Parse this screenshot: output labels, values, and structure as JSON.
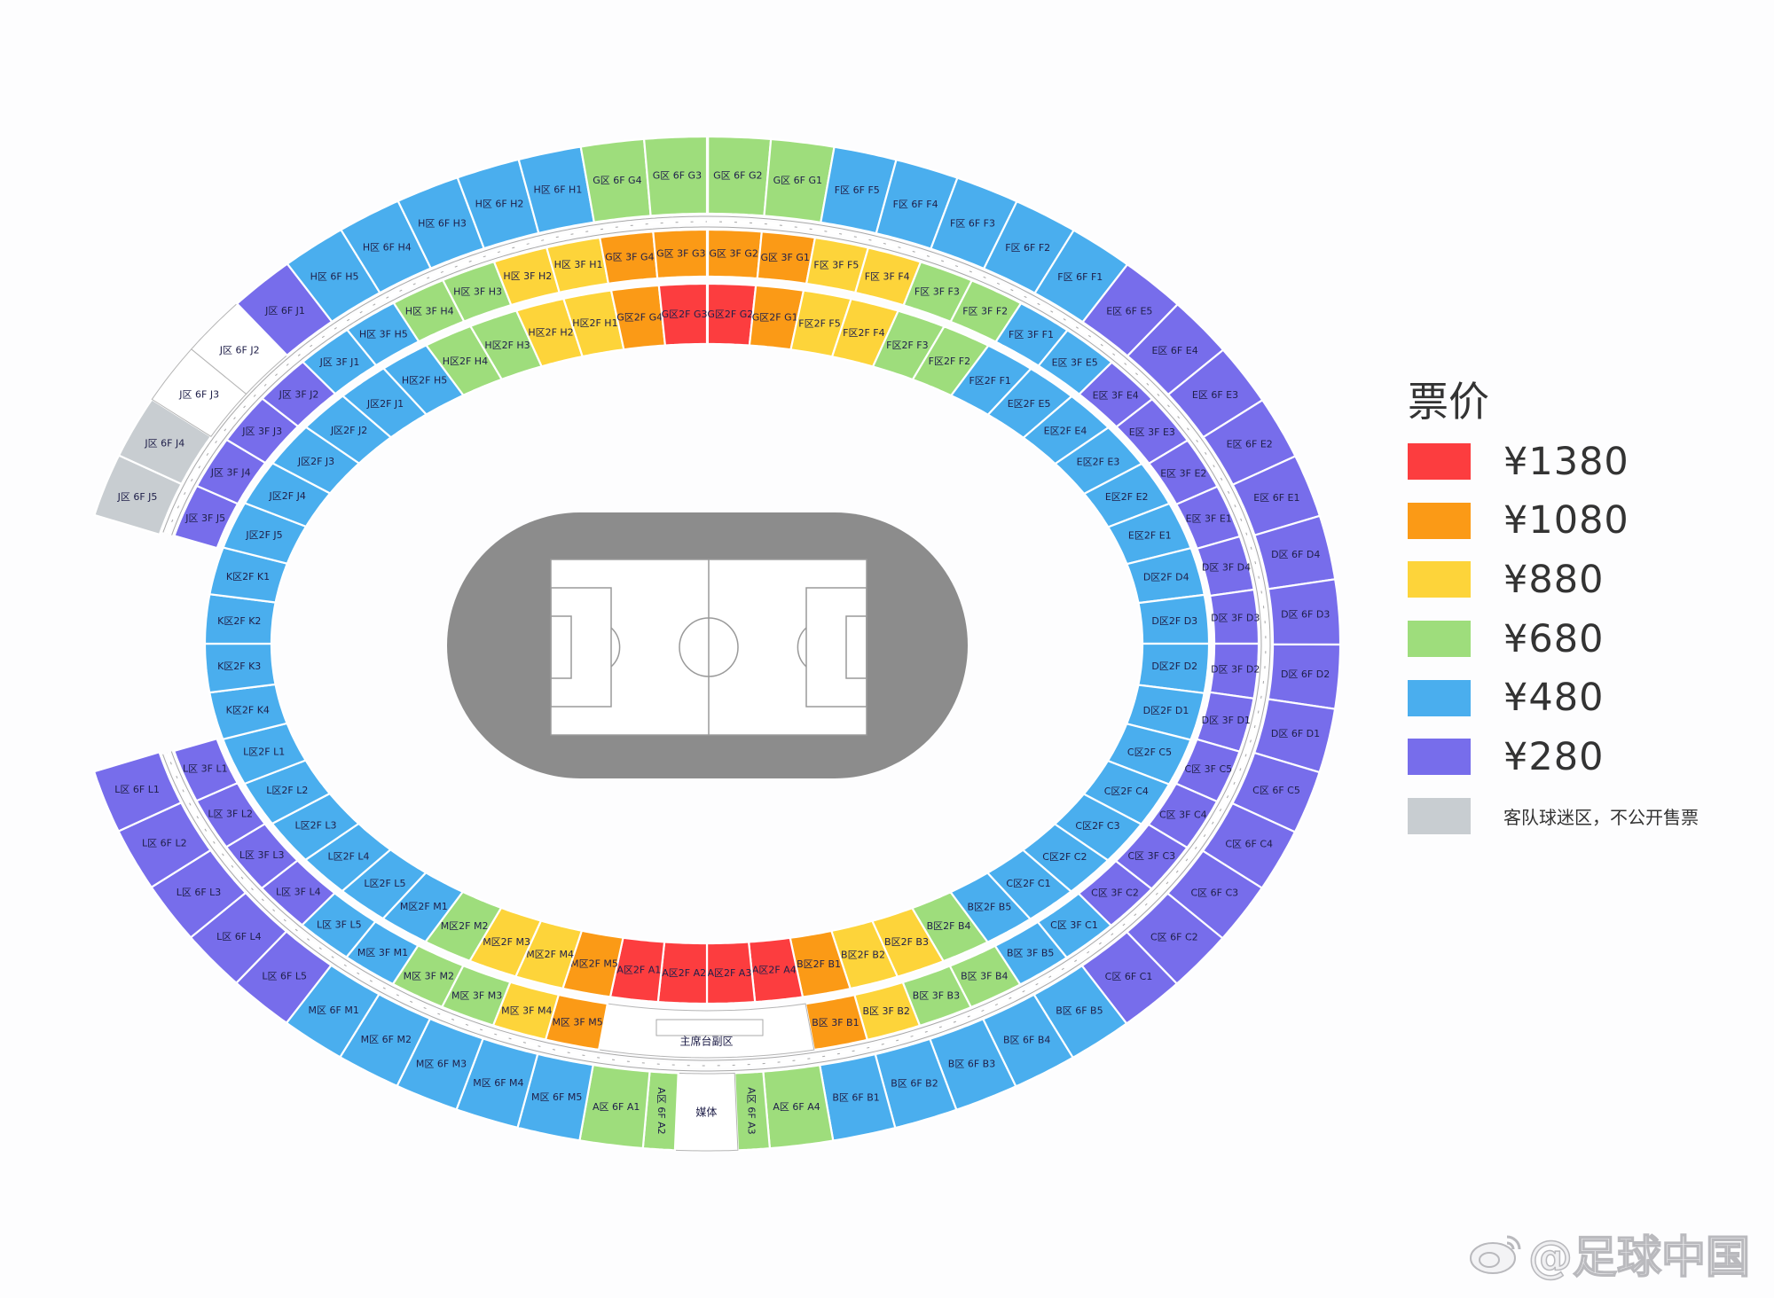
{
  "colors": {
    "r": "#fc3d3f",
    "o": "#fb9a16",
    "y": "#fdd43a",
    "g": "#9edd7c",
    "b": "#4aaeee",
    "p": "#776deb",
    "x": "#c8cdd1",
    "w": "#ffffff",
    "track": "#8c8c8c"
  },
  "legend": {
    "title": "票价",
    "items": [
      {
        "tier": "r",
        "label": "¥1380"
      },
      {
        "tier": "o",
        "label": "¥1080"
      },
      {
        "tier": "y",
        "label": "¥880"
      },
      {
        "tier": "g",
        "label": "¥680"
      },
      {
        "tier": "b",
        "label": "¥480"
      },
      {
        "tier": "p",
        "label": "¥280"
      },
      {
        "tier": "x",
        "label": "客队球迷区，不公开售票"
      }
    ]
  },
  "rings": {
    "floor_2f": [
      {
        "label": "G区2F G2",
        "tier": "r"
      },
      {
        "label": "G区2F G1",
        "tier": "o"
      },
      {
        "label": "F区2F F5",
        "tier": "y"
      },
      {
        "label": "F区2F F4",
        "tier": "y"
      },
      {
        "label": "F区2F F3",
        "tier": "g"
      },
      {
        "label": "F区2F F2",
        "tier": "g"
      },
      {
        "label": "F区2F F1",
        "tier": "b"
      },
      {
        "label": "E区2F E5",
        "tier": "b"
      },
      {
        "label": "E区2F E4",
        "tier": "b"
      },
      {
        "label": "E区2F E3",
        "tier": "b"
      },
      {
        "label": "E区2F E2",
        "tier": "b"
      },
      {
        "label": "E区2F E1",
        "tier": "b"
      },
      {
        "label": "D区2F D4",
        "tier": "b"
      },
      {
        "label": "D区2F D3",
        "tier": "b"
      },
      {
        "label": "D区2F D2",
        "tier": "b"
      },
      {
        "label": "D区2F D1",
        "tier": "b"
      },
      {
        "label": "C区2F C5",
        "tier": "b"
      },
      {
        "label": "C区2F C4",
        "tier": "b"
      },
      {
        "label": "C区2F C3",
        "tier": "b"
      },
      {
        "label": "C区2F C2",
        "tier": "b"
      },
      {
        "label": "C区2F C1",
        "tier": "b"
      },
      {
        "label": "B区2F B5",
        "tier": "b"
      },
      {
        "label": "B区2F B4",
        "tier": "g"
      },
      {
        "label": "B区2F B3",
        "tier": "y"
      },
      {
        "label": "B区2F B2",
        "tier": "y"
      },
      {
        "label": "B区2F B1",
        "tier": "o"
      },
      {
        "label": "A区2F A4",
        "tier": "r"
      },
      {
        "label": "A区2F A3",
        "tier": "r"
      },
      {
        "label": "A区2F A2",
        "tier": "r"
      },
      {
        "label": "A区2F A1",
        "tier": "r"
      },
      {
        "label": "M区2F M5",
        "tier": "o"
      },
      {
        "label": "M区2F M4",
        "tier": "y"
      },
      {
        "label": "M区2F M3",
        "tier": "y"
      },
      {
        "label": "M区2F M2",
        "tier": "g"
      },
      {
        "label": "M区2F M1",
        "tier": "b"
      },
      {
        "label": "L区2F L5",
        "tier": "b"
      },
      {
        "label": "L区2F L4",
        "tier": "b"
      },
      {
        "label": "L区2F L3",
        "tier": "b"
      },
      {
        "label": "L区2F L2",
        "tier": "b"
      },
      {
        "label": "L区2F L1",
        "tier": "b"
      },
      {
        "label": "K区2F K4",
        "tier": "b"
      },
      {
        "label": "K区2F K3",
        "tier": "b"
      },
      {
        "label": "K区2F K2",
        "tier": "b"
      },
      {
        "label": "K区2F K1",
        "tier": "b"
      },
      {
        "label": "J区2F J5",
        "tier": "b"
      },
      {
        "label": "J区2F J4",
        "tier": "b"
      },
      {
        "label": "J区2F J3",
        "tier": "b"
      },
      {
        "label": "J区2F J2",
        "tier": "b"
      },
      {
        "label": "J区2F J1",
        "tier": "b"
      },
      {
        "label": "H区2F H5",
        "tier": "b"
      },
      {
        "label": "H区2F H4",
        "tier": "g"
      },
      {
        "label": "H区2F H3",
        "tier": "g"
      },
      {
        "label": "H区2F H2",
        "tier": "y"
      },
      {
        "label": "H区2F H1",
        "tier": "y"
      },
      {
        "label": "G区2F G4",
        "tier": "o"
      },
      {
        "label": "G区2F G3",
        "tier": "r"
      }
    ],
    "floor_3f": [
      {
        "label": "G区 3F G2",
        "tier": "o"
      },
      {
        "label": "G区 3F G1",
        "tier": "o"
      },
      {
        "label": "F区 3F F5",
        "tier": "y"
      },
      {
        "label": "F区 3F F4",
        "tier": "y"
      },
      {
        "label": "F区 3F F3",
        "tier": "g"
      },
      {
        "label": "F区 3F F2",
        "tier": "g"
      },
      {
        "label": "F区 3F F1",
        "tier": "b"
      },
      {
        "label": "E区 3F E5",
        "tier": "b"
      },
      {
        "label": "E区 3F E4",
        "tier": "p"
      },
      {
        "label": "E区 3F E3",
        "tier": "p"
      },
      {
        "label": "E区 3F E2",
        "tier": "p"
      },
      {
        "label": "E区 3F E1",
        "tier": "p"
      },
      {
        "label": "D区 3F D4",
        "tier": "p"
      },
      {
        "label": "D区 3F D3",
        "tier": "p"
      },
      {
        "label": "D区 3F D2",
        "tier": "p"
      },
      {
        "label": "D区 3F D1",
        "tier": "p"
      },
      {
        "label": "C区 3F C5",
        "tier": "p"
      },
      {
        "label": "C区 3F C4",
        "tier": "p"
      },
      {
        "label": "C区 3F C3",
        "tier": "p"
      },
      {
        "label": "C区 3F C2",
        "tier": "p"
      },
      {
        "label": "C区 3F C1",
        "tier": "b"
      },
      {
        "label": "B区 3F B5",
        "tier": "b"
      },
      {
        "label": "B区 3F B4",
        "tier": "g"
      },
      {
        "label": "B区 3F B3",
        "tier": "g"
      },
      {
        "label": "B区 3F B2",
        "tier": "y"
      },
      {
        "label": "B区 3F B1",
        "tier": "o"
      },
      {
        "label": "主席台副区",
        "tier": "w"
      },
      {
        "label": "M区 3F M5",
        "tier": "o"
      },
      {
        "label": "M区 3F M4",
        "tier": "y"
      },
      {
        "label": "M区 3F M3",
        "tier": "g"
      },
      {
        "label": "M区 3F M2",
        "tier": "g"
      },
      {
        "label": "M区 3F M1",
        "tier": "b"
      },
      {
        "label": "L区 3F L5",
        "tier": "b"
      },
      {
        "label": "L区 3F L4",
        "tier": "p"
      },
      {
        "label": "L区 3F L3",
        "tier": "p"
      },
      {
        "label": "L区 3F L2",
        "tier": "p"
      },
      {
        "label": "L区 3F L1",
        "tier": "p"
      },
      {
        "label": "J区 3F J5",
        "tier": "p"
      },
      {
        "label": "J区 3F J4",
        "tier": "p"
      },
      {
        "label": "J区 3F J3",
        "tier": "p"
      },
      {
        "label": "J区 3F J2",
        "tier": "p"
      },
      {
        "label": "J区 3F J1",
        "tier": "b"
      },
      {
        "label": "H区 3F H5",
        "tier": "b"
      },
      {
        "label": "H区 3F H4",
        "tier": "g"
      },
      {
        "label": "H区 3F H3",
        "tier": "g"
      },
      {
        "label": "H区 3F H2",
        "tier": "y"
      },
      {
        "label": "H区 3F H1",
        "tier": "y"
      },
      {
        "label": "G区 3F G4",
        "tier": "o"
      },
      {
        "label": "G区 3F G3",
        "tier": "o"
      }
    ],
    "floor_6f": [
      {
        "label": "G区 6F G2",
        "tier": "g"
      },
      {
        "label": "G区 6F G1",
        "tier": "g"
      },
      {
        "label": "F区 6F F5",
        "tier": "b"
      },
      {
        "label": "F区 6F F4",
        "tier": "b"
      },
      {
        "label": "F区 6F F3",
        "tier": "b"
      },
      {
        "label": "F区 6F F2",
        "tier": "b"
      },
      {
        "label": "F区 6F F1",
        "tier": "b"
      },
      {
        "label": "E区 6F E5",
        "tier": "p"
      },
      {
        "label": "E区 6F E4",
        "tier": "p"
      },
      {
        "label": "E区 6F E3",
        "tier": "p"
      },
      {
        "label": "E区 6F E2",
        "tier": "p"
      },
      {
        "label": "E区 6F E1",
        "tier": "p"
      },
      {
        "label": "D区 6F D4",
        "tier": "p"
      },
      {
        "label": "D区 6F D3",
        "tier": "p"
      },
      {
        "label": "D区 6F D2",
        "tier": "p"
      },
      {
        "label": "D区 6F D1",
        "tier": "p"
      },
      {
        "label": "C区 6F C5",
        "tier": "p"
      },
      {
        "label": "C区 6F C4",
        "tier": "p"
      },
      {
        "label": "C区 6F C3",
        "tier": "p"
      },
      {
        "label": "C区 6F C2",
        "tier": "p"
      },
      {
        "label": "C区 6F C1",
        "tier": "p"
      },
      {
        "label": "B区 6F B5",
        "tier": "b"
      },
      {
        "label": "B区 6F B4",
        "tier": "b"
      },
      {
        "label": "B区 6F B3",
        "tier": "b"
      },
      {
        "label": "B区 6F B2",
        "tier": "b"
      },
      {
        "label": "B区 6F B1",
        "tier": "b"
      },
      {
        "label": "A区 6F A4",
        "tier": "g"
      },
      {
        "label": "A区 6F A3",
        "tier": "g"
      },
      {
        "label": "媒体",
        "tier": "w"
      },
      {
        "label": "A区 6F A2",
        "tier": "g"
      },
      {
        "label": "A区 6F A1",
        "tier": "g"
      },
      {
        "label": "M区 6F M5",
        "tier": "b"
      },
      {
        "label": "M区 6F M4",
        "tier": "b"
      },
      {
        "label": "M区 6F M3",
        "tier": "b"
      },
      {
        "label": "M区 6F M2",
        "tier": "b"
      },
      {
        "label": "M区 6F M1",
        "tier": "b"
      },
      {
        "label": "L区 6F L5",
        "tier": "p"
      },
      {
        "label": "L区 6F L4",
        "tier": "p"
      },
      {
        "label": "L区 6F L3",
        "tier": "p"
      },
      {
        "label": "L区 6F L2",
        "tier": "p"
      },
      {
        "label": "L区 6F L1",
        "tier": "p"
      },
      {
        "label": "J区 6F J5",
        "tier": "x"
      },
      {
        "label": "J区 6F J4",
        "tier": "x"
      },
      {
        "label": "J区 6F J3",
        "tier": "w"
      },
      {
        "label": "J区 6F J2",
        "tier": "w"
      },
      {
        "label": "J区 6F J1",
        "tier": "p"
      },
      {
        "label": "H区 6F H5",
        "tier": "b"
      },
      {
        "label": "H区 6F H4",
        "tier": "b"
      },
      {
        "label": "H区 6F H3",
        "tier": "b"
      },
      {
        "label": "H区 6F H2",
        "tier": "b"
      },
      {
        "label": "H区 6F H1",
        "tier": "b"
      },
      {
        "label": "G区 6F G4",
        "tier": "g"
      },
      {
        "label": "G区 6F G3",
        "tier": "g"
      }
    ]
  },
  "watermark": {
    "text": "@足球中国"
  }
}
